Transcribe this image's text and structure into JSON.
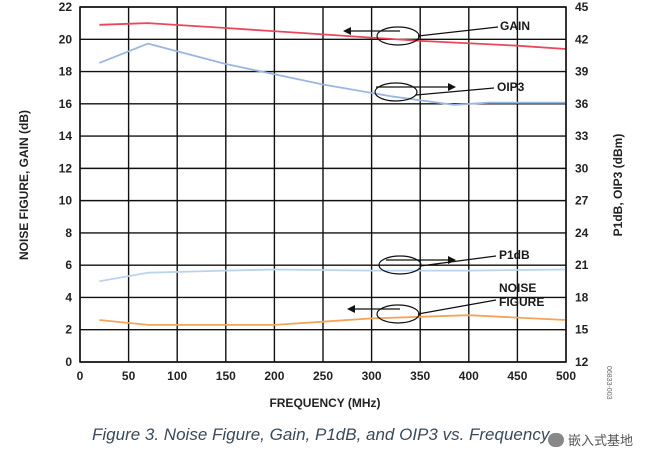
{
  "chart_data": {
    "type": "line",
    "title": "Figure 3. Noise Figure, Gain, P1dB, and OIP3 vs. Frequency",
    "xlabel": "FREQUENCY (MHz)",
    "ylabel_left": "NOISE FIGURE, GAIN (dB)",
    "ylabel_right": "P1dB, OIP3 (dBm)",
    "xlim": [
      0,
      500
    ],
    "ylim_left": [
      0,
      22
    ],
    "ylim_right": [
      12,
      45
    ],
    "x_ticks": [
      "0",
      "50",
      "100",
      "150",
      "200",
      "250",
      "300",
      "350",
      "400",
      "450",
      "500"
    ],
    "y_left_ticks": [
      "0",
      "2",
      "4",
      "6",
      "8",
      "10",
      "12",
      "14",
      "16",
      "18",
      "20",
      "22"
    ],
    "y_right_ticks": [
      "12",
      "15",
      "18",
      "21",
      "24",
      "27",
      "30",
      "33",
      "36",
      "39",
      "42",
      "45"
    ],
    "grid": true,
    "series": [
      {
        "name": "GAIN",
        "axis": "left",
        "color": "#e8485a",
        "points": [
          [
            20,
            20.9
          ],
          [
            70,
            21.0
          ],
          [
            150,
            20.7
          ],
          [
            250,
            20.3
          ],
          [
            350,
            19.9
          ],
          [
            450,
            19.6
          ],
          [
            500,
            19.4
          ]
        ]
      },
      {
        "name": "OIP3",
        "axis": "right",
        "color": "#9bb6e0",
        "points": [
          [
            20,
            39.8
          ],
          [
            70,
            41.6
          ],
          [
            150,
            39.7
          ],
          [
            250,
            37.8
          ],
          [
            320,
            36.7
          ],
          [
            385,
            35.9
          ],
          [
            420,
            36.1
          ],
          [
            500,
            36.1
          ]
        ]
      },
      {
        "name": "P1dB",
        "axis": "right",
        "color": "#bcd3ee",
        "points": [
          [
            20,
            19.5
          ],
          [
            70,
            20.3
          ],
          [
            150,
            20.5
          ],
          [
            200,
            20.6
          ],
          [
            300,
            20.5
          ],
          [
            400,
            20.5
          ],
          [
            500,
            20.6
          ]
        ]
      },
      {
        "name": "NOISE FIGURE",
        "axis": "left",
        "color": "#f4a45a",
        "points": [
          [
            20,
            2.6
          ],
          [
            70,
            2.3
          ],
          [
            150,
            2.3
          ],
          [
            200,
            2.3
          ],
          [
            250,
            2.5
          ],
          [
            300,
            2.7
          ],
          [
            350,
            2.8
          ],
          [
            400,
            2.9
          ],
          [
            450,
            2.75
          ],
          [
            500,
            2.6
          ]
        ]
      }
    ],
    "annotations": [
      {
        "text": "GAIN",
        "arrow": "left"
      },
      {
        "text": "OIP3",
        "arrow": "right"
      },
      {
        "text": "P1dB",
        "arrow": "right"
      },
      {
        "text": "NOISE",
        "arrow": "left"
      },
      {
        "text": "FIGURE",
        "arrow": "left"
      }
    ]
  },
  "figure_code": "06833-003",
  "watermark_text": "嵌入式基地"
}
